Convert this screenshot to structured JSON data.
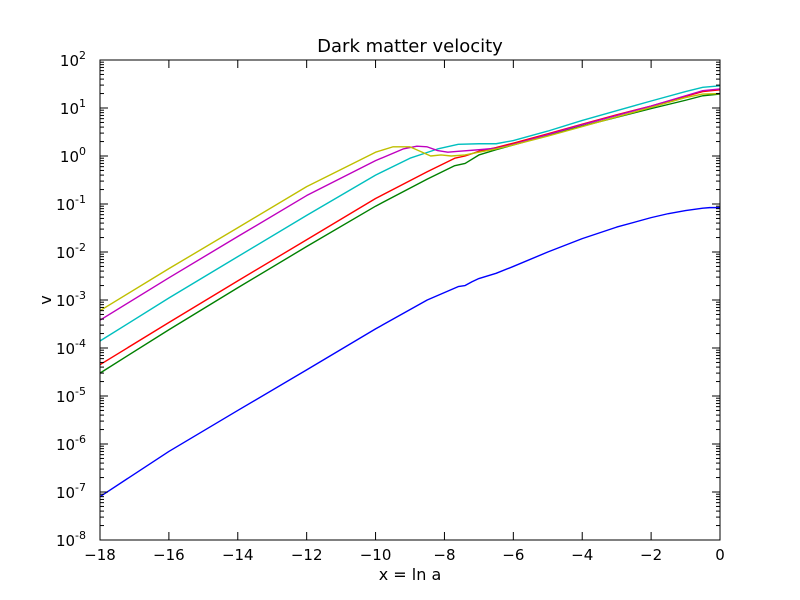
{
  "chart_data": {
    "type": "line",
    "title": "Dark matter velocity",
    "xlabel": "x = ln a",
    "ylabel": "v",
    "xlim": [
      -18,
      0
    ],
    "ylim": [
      1e-08,
      100
    ],
    "yscale": "log",
    "grid": false,
    "legend": "none",
    "x_ticks": [
      {
        "value": -18,
        "label": "−18"
      },
      {
        "value": -16,
        "label": "−16"
      },
      {
        "value": -14,
        "label": "−14"
      },
      {
        "value": -12,
        "label": "−12"
      },
      {
        "value": -10,
        "label": "−10"
      },
      {
        "value": -8,
        "label": "−8"
      },
      {
        "value": -6,
        "label": "−6"
      },
      {
        "value": -4,
        "label": "−4"
      },
      {
        "value": -2,
        "label": "−2"
      },
      {
        "value": 0,
        "label": "0"
      }
    ],
    "y_ticks": [
      {
        "exp": -8,
        "base": "10",
        "sup": "-8"
      },
      {
        "exp": -7,
        "base": "10",
        "sup": "-7"
      },
      {
        "exp": -6,
        "base": "10",
        "sup": "-6"
      },
      {
        "exp": -5,
        "base": "10",
        "sup": "-5"
      },
      {
        "exp": -4,
        "base": "10",
        "sup": "-4"
      },
      {
        "exp": -3,
        "base": "10",
        "sup": "-3"
      },
      {
        "exp": -2,
        "base": "10",
        "sup": "-2"
      },
      {
        "exp": -1,
        "base": "10",
        "sup": "-1"
      },
      {
        "exp": 0,
        "base": "10",
        "sup": "0"
      },
      {
        "exp": 1,
        "base": "10",
        "sup": "1"
      },
      {
        "exp": 2,
        "base": "10",
        "sup": "2"
      }
    ],
    "series": [
      {
        "color": "#0000ff",
        "x": [
          -18,
          -16,
          -14,
          -12,
          -10,
          -8.5,
          -7.6,
          -7.4,
          -7.2,
          -7.0,
          -6.5,
          -6,
          -5,
          -4,
          -3,
          -2,
          -1.5,
          -1,
          -0.5,
          -0.3,
          0
        ],
        "y": [
          8e-08,
          7e-07,
          5e-06,
          3.5e-05,
          0.00025,
          0.001,
          0.0019,
          0.002,
          0.0024,
          0.0028,
          0.0036,
          0.005,
          0.01,
          0.019,
          0.033,
          0.052,
          0.063,
          0.073,
          0.082,
          0.084,
          0.084
        ]
      },
      {
        "color": "#008000",
        "x": [
          -18,
          -16,
          -14,
          -12,
          -10,
          -8.5,
          -7.7,
          -7.4,
          -7.0,
          -6.5,
          -6,
          -5,
          -4,
          -3,
          -2,
          -1,
          -0.5,
          0
        ],
        "y": [
          3e-05,
          0.00024,
          0.0018,
          0.013,
          0.09,
          0.33,
          0.63,
          0.7,
          1.05,
          1.35,
          1.7,
          2.7,
          4.2,
          6.4,
          9.7,
          14.5,
          18,
          19.5
        ]
      },
      {
        "color": "#ff0000",
        "x": [
          -18,
          -16,
          -14,
          -12,
          -10,
          -8.5,
          -7.7,
          -7.4,
          -7.0,
          -6.5,
          -6,
          -5,
          -4,
          -3,
          -2,
          -1,
          -0.5,
          0
        ],
        "y": [
          4.5e-05,
          0.00034,
          0.0025,
          0.018,
          0.13,
          0.47,
          0.9,
          1.0,
          1.25,
          1.5,
          1.85,
          2.9,
          4.6,
          7.2,
          11,
          17.5,
          22,
          24
        ]
      },
      {
        "color": "#00bfbf",
        "x": [
          -18,
          -16,
          -14,
          -12,
          -10,
          -9,
          -8.2,
          -7.6,
          -7.0,
          -6.5,
          -6,
          -5,
          -4,
          -3,
          -2,
          -1,
          -0.5,
          0
        ],
        "y": [
          0.00014,
          0.0011,
          0.008,
          0.058,
          0.4,
          0.9,
          1.4,
          1.75,
          1.8,
          1.8,
          2.1,
          3.3,
          5.5,
          8.8,
          14,
          22,
          27,
          29
        ]
      },
      {
        "color": "#bf00bf",
        "x": [
          -18,
          -16,
          -14,
          -12,
          -10,
          -9.2,
          -8.8,
          -8.5,
          -8.2,
          -7.9,
          -7.6,
          -7.0,
          -6.5,
          -6,
          -5,
          -4,
          -3,
          -2,
          -1,
          -0.5,
          0
        ],
        "y": [
          0.00038,
          0.0029,
          0.021,
          0.15,
          0.8,
          1.4,
          1.6,
          1.55,
          1.3,
          1.2,
          1.25,
          1.35,
          1.45,
          1.75,
          2.8,
          4.5,
          7,
          11,
          18,
          23,
          25
        ]
      },
      {
        "color": "#bfbf00",
        "x": [
          -18,
          -16,
          -14,
          -12,
          -10,
          -9.5,
          -9.0,
          -8.7,
          -8.4,
          -8.1,
          -7.8,
          -7.4,
          -7.0,
          -6.5,
          -6,
          -5,
          -4,
          -3,
          -2,
          -1,
          -0.5,
          0
        ],
        "y": [
          0.0006,
          0.0045,
          0.032,
          0.23,
          1.2,
          1.55,
          1.55,
          1.25,
          1.0,
          1.05,
          1.0,
          1.05,
          1.2,
          1.4,
          1.7,
          2.6,
          4.1,
          6.5,
          10.3,
          16.5,
          19.5,
          20
        ]
      }
    ]
  }
}
